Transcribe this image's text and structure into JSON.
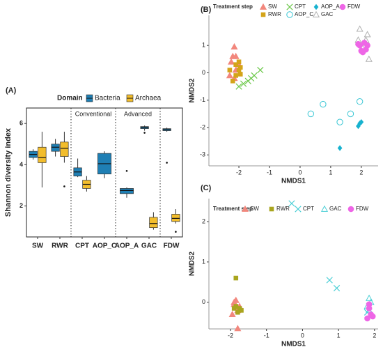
{
  "chart_data": [
    {
      "type": "box",
      "panel_label": "(A)",
      "legend_title": "Domain",
      "ylabel": "Shannon diversity index",
      "categories": [
        "SW",
        "RWR",
        "CPT",
        "AOP_C",
        "AOP_A",
        "GAC",
        "FDW"
      ],
      "sections": [
        "Conventional",
        "Advanced"
      ],
      "ylim": [
        0.5,
        6.75
      ],
      "yticks": [
        2,
        4,
        6
      ],
      "series": [
        {
          "name": "Bacteria",
          "color": "#1f7fb4",
          "min": [
            4.25,
            4.4,
            3.4,
            3.35,
            2.4,
            5.65,
            5.6
          ],
          "q1": [
            4.35,
            4.65,
            3.45,
            3.55,
            2.6,
            5.75,
            5.65
          ],
          "median": [
            4.5,
            4.85,
            3.65,
            4.05,
            2.75,
            5.8,
            5.7
          ],
          "q3": [
            4.65,
            5.0,
            3.85,
            4.55,
            2.85,
            5.85,
            5.75
          ],
          "max": [
            4.75,
            5.25,
            4.3,
            4.65,
            2.9,
            5.9,
            5.8
          ],
          "outliers": [
            [],
            [],
            [],
            [],
            [
              3.7
            ],
            [
              5.55
            ],
            [
              4.1
            ]
          ]
        },
        {
          "name": "Archaea",
          "color": "#f2bd2c",
          "min": [
            2.9,
            4.1,
            2.7,
            null,
            null,
            0.85,
            1.15
          ],
          "q1": [
            4.1,
            4.4,
            2.85,
            null,
            null,
            0.95,
            1.25
          ],
          "median": [
            4.35,
            4.8,
            3.05,
            null,
            null,
            1.15,
            1.4
          ],
          "q3": [
            4.85,
            5.1,
            3.25,
            null,
            null,
            1.45,
            1.6
          ],
          "max": [
            5.6,
            5.6,
            3.45,
            null,
            null,
            1.7,
            1.85
          ],
          "outliers": [
            [],
            [
              2.95
            ],
            [],
            null,
            null,
            [],
            [
              0.75
            ]
          ]
        }
      ]
    },
    {
      "type": "scatter",
      "panel_label": "(B)",
      "legend_title": "Treatment step",
      "xlabel": "NMDS1",
      "ylabel": "NMDS2",
      "xlim": [
        -2.98,
        2.55
      ],
      "xticks": [
        -2,
        -1,
        0,
        1,
        2
      ],
      "ylim": [
        -3.4,
        2.1
      ],
      "yticks": [
        -3,
        -2,
        -1,
        0,
        1
      ],
      "series": [
        {
          "name": "SW",
          "color": "#f2877d",
          "marker": "triangle",
          "x": [
            -2.15,
            -2.2,
            -2.1,
            -2.25,
            -2.0,
            -2.1,
            -2.3,
            -2.15
          ],
          "y": [
            0.95,
            0.6,
            0.6,
            0.4,
            0.3,
            0.1,
            -0.1,
            -0.2
          ]
        },
        {
          "name": "RWR",
          "color": "#d4a419",
          "marker": "square",
          "x": [
            -2.0,
            -2.1,
            -2.3,
            -2.0,
            -1.95,
            -2.1,
            -2.2,
            -1.95
          ],
          "y": [
            0.4,
            0.3,
            0.1,
            0.1,
            0.2,
            -0.1,
            -0.3,
            -0.05
          ]
        },
        {
          "name": "CPT",
          "color": "#6cc84a",
          "marker": "x",
          "x": [
            -1.3,
            -1.5,
            -1.7,
            -1.85,
            -2.0,
            -1.6
          ],
          "y": [
            0.1,
            -0.1,
            -0.3,
            -0.4,
            -0.5,
            -0.2
          ]
        },
        {
          "name": "AOP_C",
          "color": "#38c6d4",
          "marker": "circle-open",
          "x": [
            0.35,
            0.75,
            1.3,
            1.65,
            1.95
          ],
          "y": [
            -1.5,
            -1.15,
            -1.8,
            -1.5,
            -1.05
          ]
        },
        {
          "name": "AOP_A",
          "color": "#17b2cf",
          "marker": "diamond",
          "x": [
            1.3,
            1.9,
            1.95,
            2.0
          ],
          "y": [
            -2.75,
            -1.95,
            -1.85,
            -1.8
          ]
        },
        {
          "name": "GAC",
          "color": "#b0b0b0",
          "marker": "triangle-open",
          "x": [
            1.95,
            2.2,
            2.25,
            2.05,
            1.9,
            2.15
          ],
          "y": [
            1.6,
            1.4,
            0.5,
            0.9,
            1.2,
            1.2
          ]
        },
        {
          "name": "FDW",
          "color": "#ee66e6",
          "marker": "circle",
          "x": [
            1.95,
            2.1,
            2.2,
            2.0,
            2.15,
            1.9,
            2.05
          ],
          "y": [
            1.0,
            1.1,
            1.0,
            0.8,
            0.85,
            1.05,
            0.75
          ]
        }
      ]
    },
    {
      "type": "scatter",
      "panel_label": "(C)",
      "legend_title": "Treatment step",
      "xlabel": "NMDS1",
      "ylabel": "NMDS2",
      "xlim": [
        -2.6,
        2.1
      ],
      "xticks": [
        -2,
        -1,
        0,
        1,
        2
      ],
      "ylim": [
        -0.66,
        2.57
      ],
      "yticks": [
        0,
        1,
        2
      ],
      "series": [
        {
          "name": "SW",
          "color": "#f2877d",
          "marker": "triangle",
          "x": [
            -1.9,
            -1.85,
            -1.95,
            -1.8,
            -1.9,
            -1.8,
            -1.75,
            -1.85
          ],
          "y": [
            0,
            -0.1,
            -0.3,
            -0.2,
            -0.05,
            -0.65,
            -0.1,
            0.05
          ]
        },
        {
          "name": "RWR",
          "color": "#a9a51e",
          "marker": "square",
          "x": [
            -1.85,
            -1.75,
            -1.8,
            -1.9,
            -1.85,
            -1.7
          ],
          "y": [
            0.6,
            -0.15,
            -0.25,
            -0.15,
            -0.1,
            -0.2
          ]
        },
        {
          "name": "CPT",
          "color": "#4ccfd6",
          "marker": "x",
          "x": [
            -0.3,
            0.75,
            0.95,
            1.85,
            1.8
          ],
          "y": [
            2.45,
            0.55,
            0.35,
            -0.1,
            -0.25
          ]
        },
        {
          "name": "GAC",
          "color": "#4ccfd6",
          "marker": "triangle-open",
          "x": [
            1.85,
            1.9,
            1.8,
            1.85
          ],
          "y": [
            0.1,
            0,
            -0.1,
            -0.2
          ]
        },
        {
          "name": "FDW",
          "color": "#ee66e6",
          "marker": "circle",
          "x": [
            1.85,
            1.9,
            1.8,
            1.95,
            1.85
          ],
          "y": [
            -0.15,
            -0.3,
            -0.4,
            -0.35,
            -0.05
          ]
        }
      ]
    }
  ]
}
